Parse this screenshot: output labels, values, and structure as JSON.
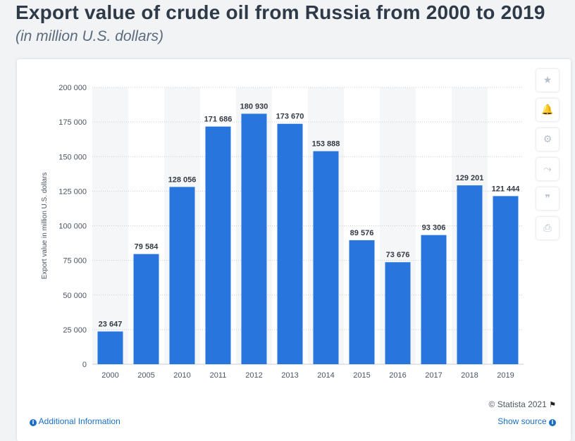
{
  "header": {
    "title": "Export value of crude oil from Russia from 2000 to 2019",
    "subtitle": "(in million U.S. dollars)"
  },
  "chart_data": {
    "type": "bar",
    "categories": [
      "2000",
      "2005",
      "2010",
      "2011",
      "2012",
      "2013",
      "2014",
      "2015",
      "2016",
      "2017",
      "2018",
      "2019"
    ],
    "values": [
      23647,
      79584,
      128056,
      171686,
      180930,
      173670,
      153888,
      89576,
      73676,
      93306,
      129201,
      121444
    ],
    "data_labels": [
      "23 647",
      "79 584",
      "128 056",
      "171 686",
      "180 930",
      "173 670",
      "153 888",
      "89 576",
      "73 676",
      "93 306",
      "129 201",
      "121 444"
    ],
    "ylabel": "Export value in million U.S. dollars",
    "xlabel": "",
    "ylim": [
      0,
      200000
    ],
    "yticks": [
      0,
      25000,
      50000,
      75000,
      100000,
      125000,
      150000,
      175000,
      200000
    ],
    "ytick_labels": [
      "0",
      "25 000",
      "50 000",
      "75 000",
      "100 000",
      "125 000",
      "150 000",
      "175 000",
      "200 000"
    ],
    "bar_color": "#2876dd",
    "grid": true
  },
  "toolbar": {
    "buttons": [
      {
        "name": "star-icon",
        "glyph": "★"
      },
      {
        "name": "bell-icon",
        "glyph": "🔔"
      },
      {
        "name": "gear-icon",
        "glyph": "⚙"
      },
      {
        "name": "share-icon",
        "glyph": "⤳"
      },
      {
        "name": "quote-icon",
        "glyph": "❞"
      },
      {
        "name": "print-icon",
        "glyph": "⎙"
      }
    ]
  },
  "footer": {
    "copyright": "© Statista 2021",
    "additional_info": "Additional Information",
    "show_source": "Show source"
  }
}
